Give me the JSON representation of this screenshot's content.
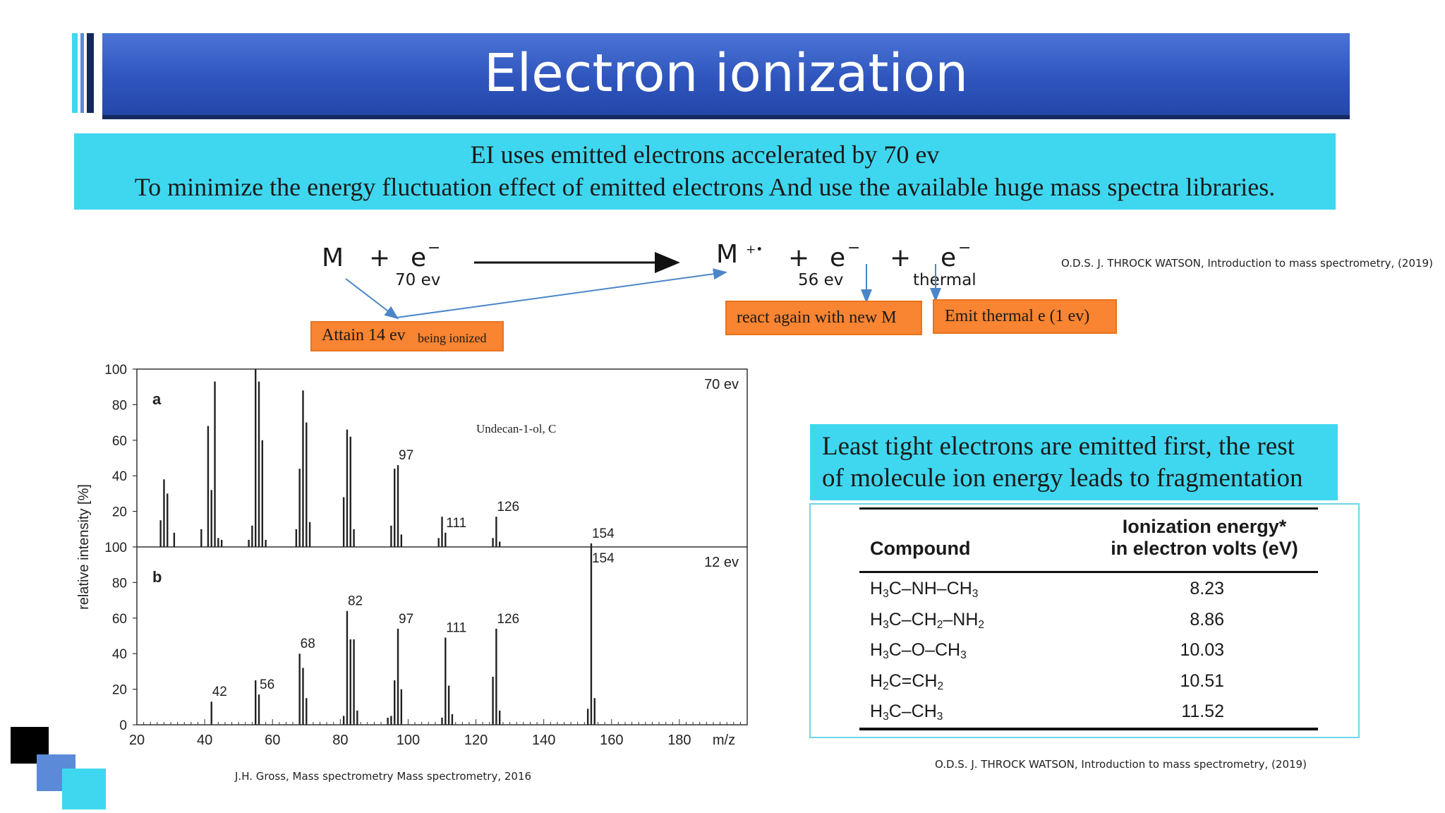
{
  "slide": {
    "title": "Electron ionization",
    "intro": [
      "EI uses emitted electrons accelerated by 70 ev",
      "To minimize the energy fluctuation effect of emitted  electrons And  use the available huge mass spectra libraries."
    ],
    "equation": {
      "m": "M",
      "plus": "+",
      "e": "e",
      "minus": "−",
      "e_energy": "70 ev",
      "product_ion": "M",
      "product_charge": "+•",
      "e_out_energy": "56 ev",
      "e_thermal": "thermal"
    },
    "callouts": {
      "attain_main": "Attain 14 ev",
      "attain_small": "being ionized",
      "react": "react again with new M",
      "emit": "Emit thermal e (1 ev)"
    },
    "citation_top": "O.D.S. J. THROCK WATSON, Introduction to mass spectrometry, (2019)",
    "citation_chart": "J.H. Gross, Mass spectrometry Mass spectrometry, 2016",
    "citation_table": "O.D.S. J. THROCK WATSON, Introduction to mass spectrometry, (2019)",
    "least_tight": [
      "Least tight electrons are emitted first, the rest",
      "of molecule ion energy leads to fragmentation"
    ],
    "colors": {
      "title_bar": "#3560c9",
      "cyan_box": "#3fd7ef",
      "orange_box": "#f98431",
      "arrow_blue": "#4a86c8"
    }
  },
  "table": {
    "header_compound": "Compound",
    "header_energy_line1": "Ionization energy*",
    "header_energy_line2": "in electron volts (eV)",
    "rows": [
      {
        "compound": "H3C–NH–CH3",
        "energy": "8.23"
      },
      {
        "compound": "H3C–CH2–NH2",
        "energy": "8.86"
      },
      {
        "compound": "H3C–O–CH3",
        "energy": "10.03"
      },
      {
        "compound": "H2C=CH2",
        "energy": "10.51"
      },
      {
        "compound": "H3C–CH3",
        "energy": "11.52"
      }
    ]
  },
  "chart_data": [
    {
      "type": "bar",
      "panel_label": "a",
      "energy_label": "70 ev",
      "compound_label": "Undecan-1-ol, C",
      "xlim": [
        20,
        200
      ],
      "ylim": [
        0,
        100
      ],
      "x_ticks": [
        "20",
        "40",
        "60",
        "80",
        "100",
        "120",
        "140",
        "160",
        "180"
      ],
      "x_unit": "m/z",
      "y_ticks": [
        "100",
        "80",
        "60",
        "40",
        "20"
      ],
      "ylabel": "relative intensity [%]",
      "peak_labels": [
        97,
        111,
        126,
        154
      ],
      "peaks": [
        [
          27,
          15
        ],
        [
          28,
          38
        ],
        [
          29,
          30
        ],
        [
          31,
          8
        ],
        [
          39,
          10
        ],
        [
          41,
          68
        ],
        [
          42,
          32
        ],
        [
          43,
          93
        ],
        [
          44,
          5
        ],
        [
          45,
          4
        ],
        [
          53,
          4
        ],
        [
          54,
          12
        ],
        [
          55,
          100
        ],
        [
          56,
          93
        ],
        [
          57,
          60
        ],
        [
          58,
          4
        ],
        [
          67,
          10
        ],
        [
          68,
          44
        ],
        [
          69,
          88
        ],
        [
          70,
          70
        ],
        [
          71,
          14
        ],
        [
          81,
          28
        ],
        [
          82,
          66
        ],
        [
          83,
          62
        ],
        [
          84,
          10
        ],
        [
          95,
          12
        ],
        [
          96,
          44
        ],
        [
          97,
          46
        ],
        [
          98,
          7
        ],
        [
          109,
          5
        ],
        [
          110,
          17
        ],
        [
          111,
          8
        ],
        [
          125,
          5
        ],
        [
          126,
          17
        ],
        [
          127,
          3
        ],
        [
          154,
          2
        ]
      ]
    },
    {
      "type": "bar",
      "panel_label": "b",
      "energy_label": "12 ev",
      "xlim": [
        20,
        200
      ],
      "ylim": [
        0,
        100
      ],
      "x_ticks": [
        "20",
        "40",
        "60",
        "80",
        "100",
        "120",
        "140",
        "160",
        "180"
      ],
      "x_unit": "m/z",
      "y_ticks": [
        "100",
        "80",
        "60",
        "40",
        "20",
        "0"
      ],
      "peak_labels": [
        42,
        56,
        68,
        82,
        97,
        111,
        126,
        154
      ],
      "peaks": [
        [
          42,
          13
        ],
        [
          55,
          25
        ],
        [
          56,
          17
        ],
        [
          68,
          40
        ],
        [
          69,
          32
        ],
        [
          70,
          15
        ],
        [
          81,
          5
        ],
        [
          82,
          64
        ],
        [
          83,
          48
        ],
        [
          84,
          48
        ],
        [
          85,
          8
        ],
        [
          94,
          4
        ],
        [
          95,
          5
        ],
        [
          96,
          25
        ],
        [
          97,
          54
        ],
        [
          98,
          20
        ],
        [
          110,
          4
        ],
        [
          111,
          49
        ],
        [
          112,
          22
        ],
        [
          113,
          6
        ],
        [
          125,
          27
        ],
        [
          126,
          54
        ],
        [
          127,
          8
        ],
        [
          153,
          9
        ],
        [
          154,
          100
        ],
        [
          155,
          15
        ]
      ]
    }
  ]
}
